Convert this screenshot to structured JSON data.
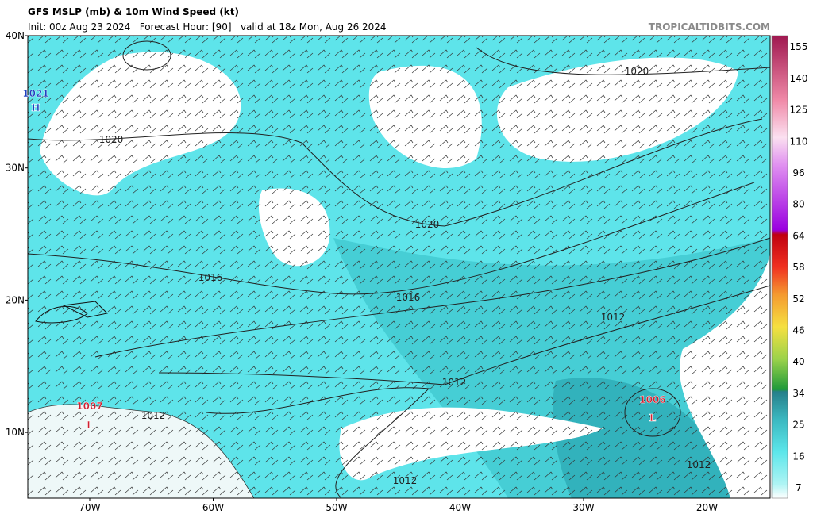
{
  "header": {
    "title": "GFS MSLP (mb) & 10m Wind Speed (kt)",
    "subtitle": "Init: 00z Aug 23 2024   Forecast Hour: [90]   valid at 18z Mon, Aug 26 2024",
    "site": "TROPICALTIDBITS.COM"
  },
  "map": {
    "latitude_labels": [
      "40N",
      "30N",
      "20N",
      "10N"
    ],
    "longitude_labels": [
      "70W",
      "60W",
      "50W",
      "40W",
      "30W",
      "20W"
    ],
    "isobar_labels": [
      1020,
      1020,
      1020,
      1016,
      1016,
      1012,
      1012,
      1012,
      1012,
      1012
    ],
    "pressure_centers": [
      {
        "letter": "H",
        "value": 1021,
        "color": "#1f3fbf"
      },
      {
        "letter": "L",
        "value": 1007,
        "color": "#d02030"
      },
      {
        "letter": "L",
        "value": 1006,
        "color": "#d02030"
      }
    ]
  },
  "colorbar": {
    "ticks": [
      7,
      16,
      25,
      34,
      40,
      46,
      52,
      58,
      64,
      80,
      96,
      110,
      125,
      140,
      155
    ]
  }
}
